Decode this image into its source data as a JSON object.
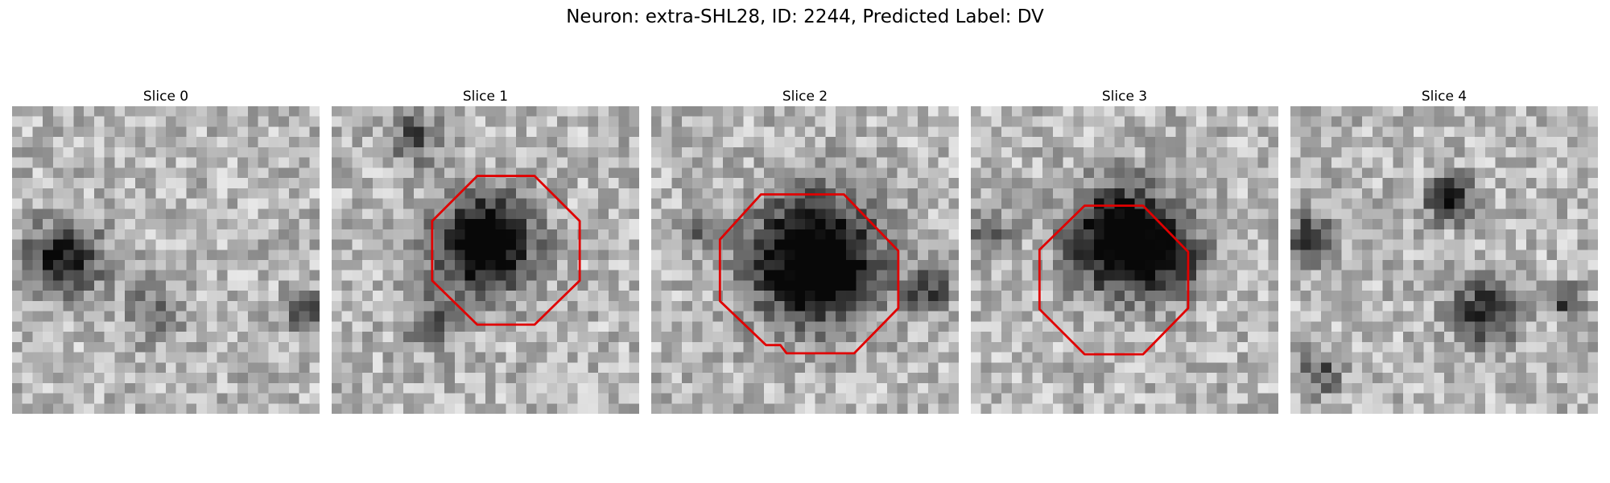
{
  "figure": {
    "title": "Neuron: extra-SHL28, ID: 2244, Predicted Label: DV"
  },
  "slices": [
    {
      "title": "Slice 0",
      "contour": false
    },
    {
      "title": "Slice 1",
      "contour": true
    },
    {
      "title": "Slice 2",
      "contour": true
    },
    {
      "title": "Slice 3",
      "contour": true
    },
    {
      "title": "Slice 4",
      "contour": false
    }
  ],
  "colors": {
    "contour": "#e00000",
    "colormap": "grayscale"
  }
}
